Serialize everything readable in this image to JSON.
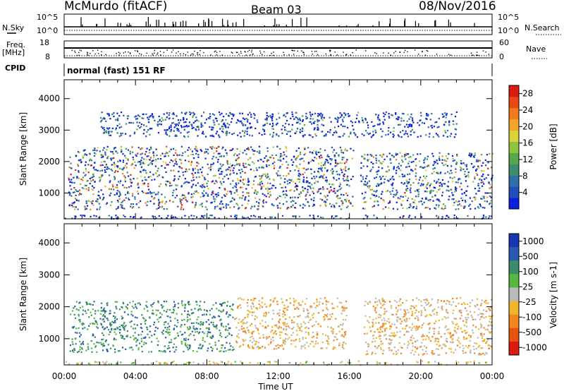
{
  "header": {
    "station": "McMurdo (fitACF)",
    "beam": "Beam 03",
    "date": "08/Nov/2016"
  },
  "noise_panel": {
    "left_label": "N.Sky",
    "right_label": "N.Search",
    "tick_top": "10^5",
    "tick_bottom": "10^0",
    "tick_top_right": "10^5",
    "tick_bottom_right": "10^0"
  },
  "freq_panel": {
    "left_label_1": "Freq.",
    "left_label_2": "[MHz]",
    "left_ticks": [
      "18",
      "8"
    ],
    "right_label": "Nave",
    "right_ticks": [
      "60",
      "0"
    ],
    "freq_range_mhz": [
      8,
      18
    ],
    "nave_range": [
      0,
      60
    ]
  },
  "cpid_panel": {
    "label": "CPID",
    "mode": "normal (fast) 151 RF"
  },
  "chart_data": [
    {
      "type": "heatmap",
      "quantity": "Power",
      "xlabel": "Time UT",
      "ylabel": "Slant Range [km]",
      "colorbar_label": "Power [dB]",
      "x_tick_labels": [
        "00:00",
        "04:00",
        "08:00",
        "12:00",
        "16:00",
        "20:00",
        "00:00"
      ],
      "xlim_hours": [
        0,
        24
      ],
      "y_ticks": [
        1000,
        2000,
        3000,
        4000
      ],
      "ylim_km": [
        180,
        4600
      ],
      "colorbar_ticks": [
        "4",
        "8",
        "12",
        "16",
        "20",
        "24",
        "28"
      ],
      "clim": [
        0,
        30
      ],
      "colorscale": [
        "#0a1fe0",
        "#1f4fb8",
        "#2f6ea8",
        "#3e8e6e",
        "#57a64a",
        "#8fc43e",
        "#d8d43a",
        "#f2a52a",
        "#f07c1c",
        "#e84a14",
        "#dd1a0c"
      ],
      "echo_regions": [
        {
          "t_start": 0.2,
          "t_end": 16.2,
          "r_start": 500,
          "r_end": 2500,
          "peak_db": 28
        },
        {
          "t_start": 16.6,
          "t_end": 24,
          "r_start": 500,
          "r_end": 2300,
          "peak_db": 22
        },
        {
          "t_start": 0.0,
          "t_end": 24,
          "r_start": 200,
          "r_end": 320,
          "peak_db": 10
        },
        {
          "t_start": 2.0,
          "t_end": 22,
          "r_start": 2800,
          "r_end": 3600,
          "peak_db": 12
        }
      ]
    },
    {
      "type": "heatmap",
      "quantity": "Velocity",
      "xlabel": "Time UT",
      "ylabel": "Slant Range [km]",
      "colorbar_label": "Velocity [m s-1]",
      "x_tick_labels": [
        "00:00",
        "04:00",
        "08:00",
        "12:00",
        "16:00",
        "20:00",
        "00:00"
      ],
      "xlim_hours": [
        0,
        24
      ],
      "y_ticks": [
        1000,
        2000,
        3000,
        4000
      ],
      "ylim_km": [
        180,
        4600
      ],
      "colorbar_ticks": [
        "1000",
        "500",
        "100",
        "25",
        "-25",
        "-100",
        "-500",
        "-1000"
      ],
      "colorscale": [
        "#1636b0",
        "#2a5ab0",
        "#3b8c6a",
        "#56b83e",
        "#b9b9b9",
        "#f2b52a",
        "#f2861e",
        "#e8540f",
        "#dd1a0c"
      ],
      "echo_regions": [
        {
          "t_start": 0.3,
          "t_end": 9.5,
          "r_start": 600,
          "r_end": 2200,
          "dominant": "100"
        },
        {
          "t_start": 9.5,
          "t_end": 15.8,
          "r_start": 700,
          "r_end": 2300,
          "dominant": "-100"
        },
        {
          "t_start": 16.8,
          "t_end": 24,
          "r_start": 500,
          "r_end": 2300,
          "dominant": "-100"
        },
        {
          "t_start": 0.0,
          "t_end": 24,
          "r_start": 200,
          "r_end": 320,
          "dominant": "-25"
        }
      ]
    }
  ]
}
